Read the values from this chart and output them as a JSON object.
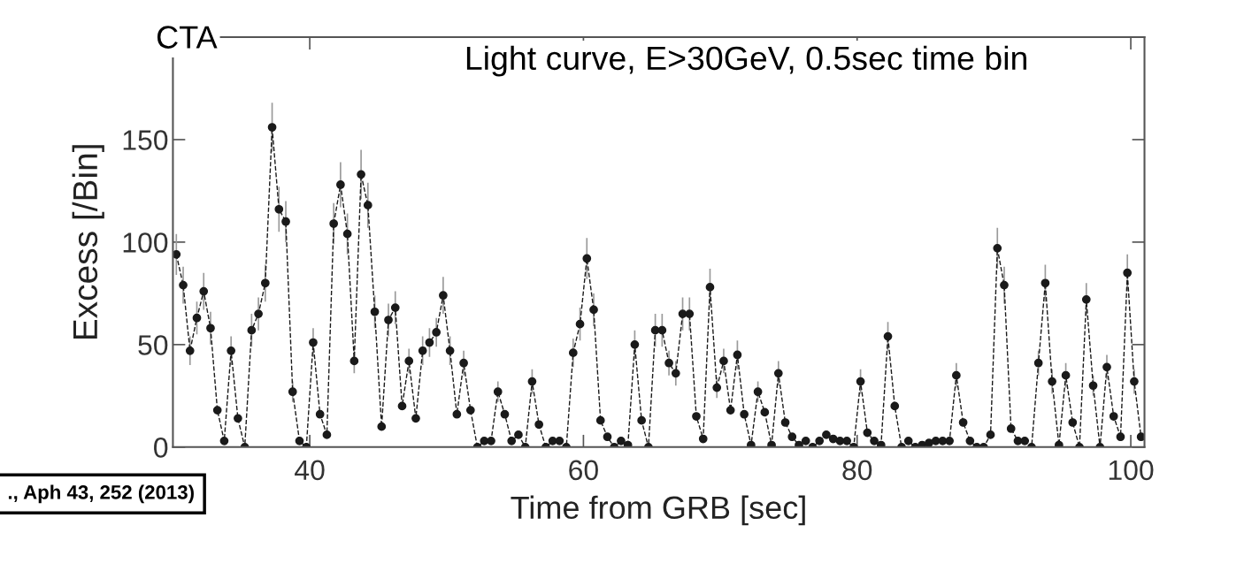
{
  "chart_data": {
    "type": "line",
    "title": "Light curve, E>30GeV, 0.5sec time bin",
    "xlabel": "Time from GRB [sec]",
    "ylabel": "Excess [/Bin]",
    "annotations": [
      "CTA",
      "., Aph 43, 252 (2013)"
    ],
    "x": [
      30.25,
      30.75,
      31.25,
      31.75,
      32.25,
      32.75,
      33.25,
      33.75,
      34.25,
      34.75,
      35.25,
      35.75,
      36.25,
      36.75,
      37.25,
      37.75,
      38.25,
      38.75,
      39.25,
      39.75,
      40.25,
      40.75,
      41.25,
      41.75,
      42.25,
      42.75,
      43.25,
      43.75,
      44.25,
      44.75,
      45.25,
      45.75,
      46.25,
      46.75,
      47.25,
      47.75,
      48.25,
      48.75,
      49.25,
      49.75,
      50.25,
      50.75,
      51.25,
      51.75,
      52.25,
      52.75,
      53.25,
      53.75,
      54.25,
      54.75,
      55.25,
      55.75,
      56.25,
      56.75,
      57.25,
      57.75,
      58.25,
      58.75,
      59.25,
      59.75,
      60.25,
      60.75,
      61.25,
      61.75,
      62.25,
      62.75,
      63.25,
      63.75,
      64.25,
      64.75,
      65.25,
      65.75,
      66.25,
      66.75,
      67.25,
      67.75,
      68.25,
      68.75,
      69.25,
      69.75,
      70.25,
      70.75,
      71.25,
      71.75,
      72.25,
      72.75,
      73.25,
      73.75,
      74.25,
      74.75,
      75.25,
      75.75,
      76.25,
      76.75,
      77.25,
      77.75,
      78.25,
      78.75,
      79.25,
      79.75,
      80.25,
      80.75,
      81.25,
      81.75,
      82.25,
      82.75,
      83.25,
      83.75,
      84.25,
      84.75,
      85.25,
      85.75,
      86.25,
      86.75,
      87.25,
      87.75,
      88.25,
      88.75,
      89.25,
      89.75,
      90.25,
      90.75,
      91.25,
      91.75,
      92.25,
      92.75,
      93.25,
      93.75,
      94.25,
      94.75,
      95.25,
      95.75,
      96.25,
      96.75,
      97.25,
      97.75,
      98.25,
      98.75,
      99.25,
      99.75,
      100.25,
      100.75
    ],
    "series": [
      {
        "color": "#1a1a1a",
        "values": [
          94,
          79,
          47,
          63,
          76,
          58,
          18,
          3,
          47,
          14,
          0,
          57,
          65,
          80,
          156,
          116,
          110,
          27,
          3,
          0,
          51,
          16,
          6,
          109,
          128,
          104,
          42,
          133,
          118,
          66,
          10,
          62,
          68,
          20,
          42,
          14,
          47,
          51,
          56,
          74,
          47,
          16,
          41,
          18,
          0,
          3,
          3,
          27,
          16,
          3,
          6,
          0,
          32,
          11,
          0,
          3,
          3,
          0,
          46,
          60,
          92,
          67,
          13,
          5,
          0,
          3,
          1,
          50,
          13,
          0,
          57,
          57,
          41,
          36,
          65,
          65,
          15,
          4,
          78,
          29,
          42,
          18,
          45,
          16,
          1,
          27,
          17,
          1,
          36,
          12,
          5,
          1,
          3,
          0,
          3,
          6,
          4,
          3,
          3,
          0,
          32,
          7,
          3,
          1,
          54,
          20,
          0,
          3,
          0,
          1,
          2,
          3,
          3,
          3,
          35,
          12,
          3,
          0,
          0,
          6,
          97,
          79,
          9,
          3,
          3,
          0,
          41,
          80,
          32,
          1,
          35,
          12,
          0,
          72,
          30,
          0,
          39,
          15,
          5,
          85,
          32,
          5
        ],
        "errors": [
          10,
          9,
          7,
          8,
          9,
          8,
          null,
          null,
          7,
          null,
          null,
          8,
          8,
          9,
          12,
          11,
          10,
          5,
          null,
          null,
          7,
          null,
          null,
          10,
          11,
          10,
          6,
          12,
          11,
          8,
          null,
          8,
          8,
          null,
          6,
          null,
          7,
          7,
          7,
          9,
          7,
          null,
          6,
          null,
          null,
          null,
          null,
          5,
          null,
          null,
          null,
          null,
          6,
          null,
          null,
          null,
          null,
          null,
          7,
          8,
          10,
          8,
          null,
          null,
          null,
          null,
          null,
          7,
          null,
          null,
          8,
          8,
          6,
          6,
          8,
          8,
          null,
          null,
          9,
          5,
          6,
          null,
          7,
          null,
          null,
          5,
          null,
          null,
          6,
          null,
          null,
          null,
          null,
          null,
          null,
          null,
          null,
          null,
          null,
          null,
          6,
          null,
          null,
          null,
          7,
          null,
          null,
          null,
          null,
          null,
          null,
          null,
          null,
          null,
          6,
          null,
          null,
          null,
          null,
          null,
          10,
          9,
          null,
          null,
          null,
          null,
          6,
          9,
          6,
          null,
          6,
          null,
          null,
          8,
          5,
          null,
          6,
          null,
          null,
          9,
          6,
          null
        ]
      }
    ],
    "xlim": [
      30,
      101
    ],
    "ylim": [
      0,
      200
    ],
    "xticks": [
      40,
      60,
      80,
      100
    ],
    "yticks": [
      0,
      50,
      100,
      150
    ],
    "grid": false,
    "legend": false,
    "marker": "circle",
    "line_style": "dashed"
  }
}
